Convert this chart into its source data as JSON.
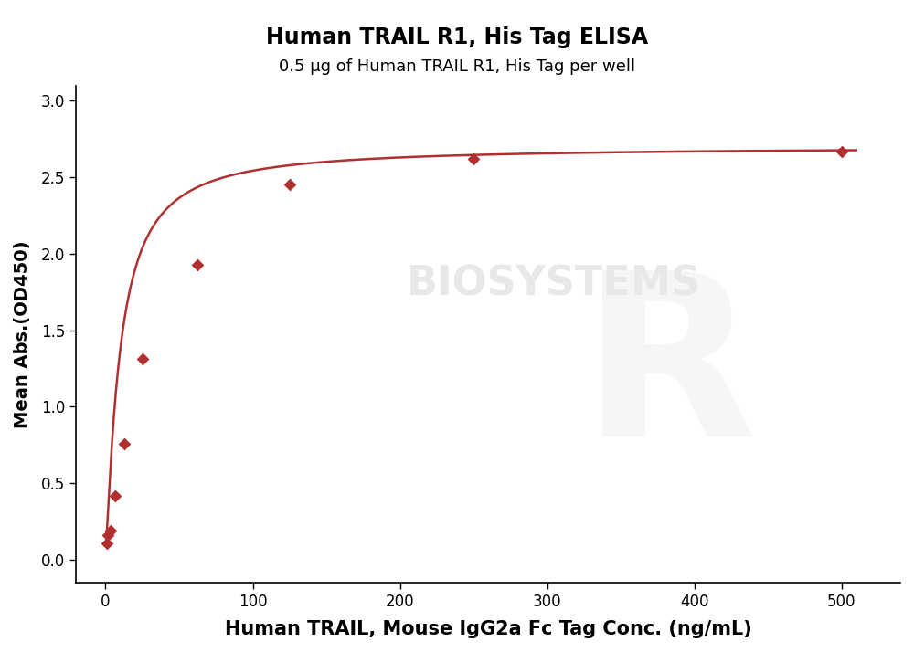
{
  "title": "Human TRAIL R1, His Tag ELISA",
  "subtitle": "0.5 μg of Human TRAIL R1, His Tag per well",
  "xlabel": "Human TRAIL, Mouse IgG2a Fc Tag Conc. (ng/mL)",
  "ylabel": "Mean Abs.(OD450)",
  "x_data": [
    0.78,
    1.563,
    3.125,
    6.25,
    12.5,
    25,
    62.5,
    125,
    250,
    500
  ],
  "y_data": [
    0.11,
    0.16,
    0.19,
    0.42,
    0.76,
    1.31,
    1.93,
    2.45,
    2.62,
    2.67
  ],
  "xlim": [
    -20,
    540
  ],
  "ylim": [
    -0.15,
    3.1
  ],
  "xticks": [
    0,
    100,
    200,
    300,
    400,
    500
  ],
  "yticks": [
    0.0,
    0.5,
    1.0,
    1.5,
    2.0,
    2.5,
    3.0
  ],
  "line_color": "#b03030",
  "marker_color": "#b03030",
  "marker": "D",
  "marker_size": 7,
  "line_width": 1.8,
  "title_fontsize": 17,
  "subtitle_fontsize": 13,
  "xlabel_fontsize": 15,
  "ylabel_fontsize": 14,
  "tick_fontsize": 12,
  "watermark_text": "BIOSYSTEMS",
  "watermark_color": "#e8e8e8",
  "background_color": "#ffffff",
  "plot_bg_color": "#ffffff"
}
